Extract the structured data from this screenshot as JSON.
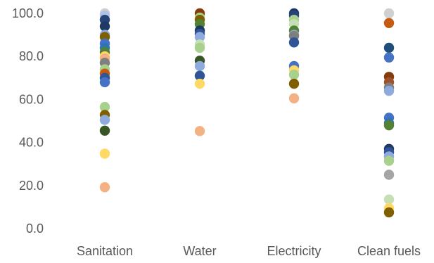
{
  "chart_data": {
    "type": "scatter",
    "title": "",
    "xlabel": "",
    "ylabel": "",
    "categories": [
      "Sanitation",
      "Water",
      "Electricity",
      "Clean fuels"
    ],
    "ylim": [
      0,
      100
    ],
    "yticks": [
      0,
      20,
      40,
      60,
      80,
      100
    ],
    "ytick_labels": [
      "0.0",
      "20.0",
      "40.0",
      "60.0",
      "80.0",
      "100.0"
    ],
    "grid": false,
    "legend": "none",
    "points": [
      {
        "category": "Sanitation",
        "y": 100.0,
        "color": "#d0d0d0"
      },
      {
        "category": "Sanitation",
        "y": 99.0,
        "color": "#aec4e6"
      },
      {
        "category": "Sanitation",
        "y": 97.0,
        "color": "#264478"
      },
      {
        "category": "Sanitation",
        "y": 94.0,
        "color": "#203864"
      },
      {
        "category": "Sanitation",
        "y": 90.0,
        "color": "#8faadc"
      },
      {
        "category": "Sanitation",
        "y": 89.0,
        "color": "#7f6000"
      },
      {
        "category": "Sanitation",
        "y": 86.0,
        "color": "#4472c4"
      },
      {
        "category": "Sanitation",
        "y": 84.0,
        "color": "#2e75b6"
      },
      {
        "category": "Sanitation",
        "y": 82.0,
        "color": "#548235"
      },
      {
        "category": "Sanitation",
        "y": 80.0,
        "color": "#ffd966"
      },
      {
        "category": "Sanitation",
        "y": 79.0,
        "color": "#f4b183"
      },
      {
        "category": "Sanitation",
        "y": 77.0,
        "color": "#7f7f7f"
      },
      {
        "category": "Sanitation",
        "y": 74.0,
        "color": "#a9d18e"
      },
      {
        "category": "Sanitation",
        "y": 72.0,
        "color": "#c55a11"
      },
      {
        "category": "Sanitation",
        "y": 70.0,
        "color": "#2f5597"
      },
      {
        "category": "Sanitation",
        "y": 68.0,
        "color": "#4472c4"
      },
      {
        "category": "Sanitation",
        "y": 56.5,
        "color": "#a9d18e"
      },
      {
        "category": "Sanitation",
        "y": 52.8,
        "color": "#7f6000"
      },
      {
        "category": "Sanitation",
        "y": 50.5,
        "color": "#8faadc"
      },
      {
        "category": "Sanitation",
        "y": 45.5,
        "color": "#375623"
      },
      {
        "category": "Sanitation",
        "y": 34.8,
        "color": "#ffd966"
      },
      {
        "category": "Sanitation",
        "y": 19.2,
        "color": "#f4b183"
      },
      {
        "category": "Water",
        "y": 100.0,
        "color": "#843c0c"
      },
      {
        "category": "Water",
        "y": 98.0,
        "color": "#a9d18e"
      },
      {
        "category": "Water",
        "y": 97.0,
        "color": "#7f6000"
      },
      {
        "category": "Water",
        "y": 95.0,
        "color": "#548235"
      },
      {
        "category": "Water",
        "y": 92.0,
        "color": "#1f3864"
      },
      {
        "category": "Water",
        "y": 90.5,
        "color": "#2f5597"
      },
      {
        "category": "Water",
        "y": 89.0,
        "color": "#8faadc"
      },
      {
        "category": "Water",
        "y": 85.5,
        "color": "#c5e0b4"
      },
      {
        "category": "Water",
        "y": 84.0,
        "color": "#a9d18e"
      },
      {
        "category": "Water",
        "y": 78.0,
        "color": "#375623"
      },
      {
        "category": "Water",
        "y": 75.5,
        "color": "#8faadc"
      },
      {
        "category": "Water",
        "y": 71.0,
        "color": "#2f5597"
      },
      {
        "category": "Water",
        "y": 67.3,
        "color": "#ffd966"
      },
      {
        "category": "Water",
        "y": 45.3,
        "color": "#f4b183"
      },
      {
        "category": "Electricity",
        "y": 100.0,
        "color": "#1f3864"
      },
      {
        "category": "Electricity",
        "y": 99.0,
        "color": "#264478"
      },
      {
        "category": "Electricity",
        "y": 97.0,
        "color": "#a9d18e"
      },
      {
        "category": "Electricity",
        "y": 95.0,
        "color": "#c5e0b4"
      },
      {
        "category": "Electricity",
        "y": 92.0,
        "color": "#548235"
      },
      {
        "category": "Electricity",
        "y": 90.0,
        "color": "#8faadc"
      },
      {
        "category": "Electricity",
        "y": 89.5,
        "color": "#7f7f7f"
      },
      {
        "category": "Electricity",
        "y": 86.5,
        "color": "#2f5597"
      },
      {
        "category": "Electricity",
        "y": 75.5,
        "color": "#4472c4"
      },
      {
        "category": "Electricity",
        "y": 73.5,
        "color": "#ffd966"
      },
      {
        "category": "Electricity",
        "y": 71.5,
        "color": "#a9d18e"
      },
      {
        "category": "Electricity",
        "y": 67.3,
        "color": "#7f6000"
      },
      {
        "category": "Electricity",
        "y": 60.5,
        "color": "#f4b183"
      },
      {
        "category": "Clean fuels",
        "y": 100.0,
        "color": "#d0d0d0"
      },
      {
        "category": "Clean fuels",
        "y": 95.5,
        "color": "#c55a11"
      },
      {
        "category": "Clean fuels",
        "y": 84.0,
        "color": "#1f4e79"
      },
      {
        "category": "Clean fuels",
        "y": 79.5,
        "color": "#4472c4"
      },
      {
        "category": "Clean fuels",
        "y": 70.5,
        "color": "#843c0c"
      },
      {
        "category": "Clean fuels",
        "y": 68.0,
        "color": "#a0522d"
      },
      {
        "category": "Clean fuels",
        "y": 65.5,
        "color": "#7f7f7f"
      },
      {
        "category": "Clean fuels",
        "y": 64.0,
        "color": "#8faadc"
      },
      {
        "category": "Clean fuels",
        "y": 51.5,
        "color": "#4472c4"
      },
      {
        "category": "Clean fuels",
        "y": 49.0,
        "color": "#2e75b6"
      },
      {
        "category": "Clean fuels",
        "y": 48.0,
        "color": "#548235"
      },
      {
        "category": "Clean fuels",
        "y": 37.0,
        "color": "#1f3864"
      },
      {
        "category": "Clean fuels",
        "y": 35.5,
        "color": "#2f5597"
      },
      {
        "category": "Clean fuels",
        "y": 33.5,
        "color": "#8faadc"
      },
      {
        "category": "Clean fuels",
        "y": 31.5,
        "color": "#a9d18e"
      },
      {
        "category": "Clean fuels",
        "y": 25.0,
        "color": "#a5a5a5"
      },
      {
        "category": "Clean fuels",
        "y": 13.5,
        "color": "#c5e0b4"
      },
      {
        "category": "Clean fuels",
        "y": 9.5,
        "color": "#ffd966"
      },
      {
        "category": "Clean fuels",
        "y": 7.5,
        "color": "#7f6000"
      }
    ]
  }
}
